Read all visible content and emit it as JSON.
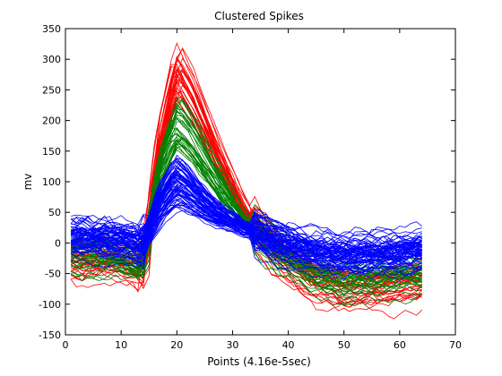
{
  "chart_data": {
    "type": "line",
    "title": "Clustered Spikes",
    "xlabel": "Points (4.16e-5sec)",
    "ylabel": "mv",
    "xlim": [
      0,
      70
    ],
    "ylim": [
      -150,
      350
    ],
    "x_ticks": [
      "0",
      "10",
      "20",
      "30",
      "40",
      "50",
      "60",
      "70"
    ],
    "y_ticks": [
      "-150",
      "-100",
      "-50",
      "0",
      "50",
      "100",
      "150",
      "200",
      "250",
      "300",
      "350"
    ],
    "grid": false,
    "legend": "none",
    "points_per_trace": 64,
    "series": [
      {
        "color": "#ff0000",
        "template_x": [
          1,
          8,
          12,
          14,
          17,
          20,
          23,
          27,
          32,
          38,
          45,
          50,
          56,
          64
        ],
        "template_y": [
          -30,
          -32,
          -40,
          -48,
          170,
          285,
          235,
          150,
          55,
          -15,
          -62,
          -75,
          -70,
          -60
        ],
        "peak_range": [
          240,
          325
        ],
        "trace_count": 35
      },
      {
        "color": "#008000",
        "template_x": [
          1,
          8,
          12,
          14,
          17,
          20,
          23,
          27,
          32,
          38,
          45,
          50,
          56,
          64
        ],
        "template_y": [
          -20,
          -22,
          -30,
          -34,
          140,
          215,
          180,
          115,
          40,
          -15,
          -50,
          -60,
          -55,
          -52
        ],
        "peak_range": [
          150,
          240
        ],
        "trace_count": 35
      },
      {
        "color": "#0000ff",
        "template_x": [
          1,
          8,
          12,
          14,
          17,
          20,
          23,
          27,
          32,
          38,
          45,
          50,
          56,
          64
        ],
        "template_y": [
          10,
          8,
          2,
          -5,
          70,
          115,
          90,
          55,
          30,
          5,
          -12,
          -18,
          -15,
          -10
        ],
        "peak_range": [
          60,
          145
        ],
        "trace_count": 70
      }
    ]
  }
}
